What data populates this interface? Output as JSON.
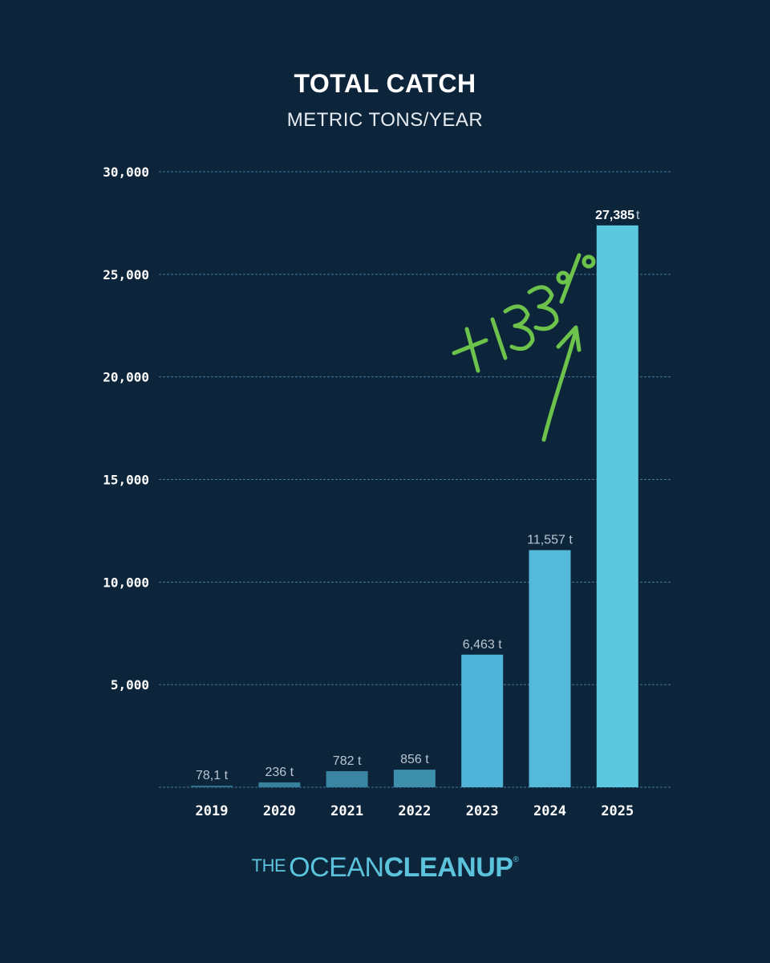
{
  "chart_data": {
    "type": "bar",
    "title": "TOTAL CATCH",
    "subtitle": "METRIC TONS/YEAR",
    "xlabel": "",
    "ylabel": "",
    "categories": [
      "2019",
      "2020",
      "2021",
      "2022",
      "2023",
      "2024",
      "2025"
    ],
    "values": [
      78.1,
      236,
      782,
      856,
      6463,
      11557,
      27385
    ],
    "data_labels": [
      "78,1 t",
      "236 t",
      "782 t",
      "856 t",
      "6,463 t",
      "11,557 t",
      "27,385"
    ],
    "last_label_suffix": "t",
    "ylim": [
      0,
      30000
    ],
    "yticks": [
      5000,
      10000,
      15000,
      20000,
      25000,
      30000
    ],
    "ytick_labels": [
      "5,000",
      "10,000",
      "15,000",
      "20,000",
      "25,000",
      "30,000"
    ],
    "grid": true,
    "bar_colors": [
      "#2f6f88",
      "#37819d",
      "#3a86a2",
      "#3d8fab",
      "#50b3d8",
      "#55bad9",
      "#5cc8e0"
    ],
    "gridline_color": "#3f7aa0",
    "annotation": {
      "text": "+133%",
      "color": "#6cc24a",
      "style": "handwritten-with-arrow"
    }
  },
  "logo": {
    "the": "THE",
    "ocean": "OCEAN",
    "cleanup": "CLEANUP",
    "reg": "®"
  }
}
